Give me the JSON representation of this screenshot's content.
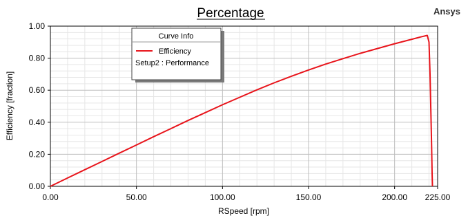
{
  "brand": "Ansys",
  "chart_data": {
    "type": "line",
    "title": "Percentage",
    "xlabel": "RSpeed [rpm]",
    "ylabel": "Efficiency [fraction]",
    "xlim": [
      0,
      225
    ],
    "ylim": [
      0,
      1
    ],
    "x_ticks": [
      "0.00",
      "50.00",
      "100.00",
      "150.00",
      "200.00",
      "225.00"
    ],
    "x_tick_values": [
      0,
      50,
      100,
      150,
      200,
      225
    ],
    "y_ticks": [
      "0.00",
      "0.20",
      "0.40",
      "0.60",
      "0.80",
      "1.00"
    ],
    "y_tick_values": [
      0,
      0.2,
      0.4,
      0.6,
      0.8,
      1.0
    ],
    "grid": true,
    "legend": {
      "title": "Curve Info",
      "placement": "top-left",
      "entries": [
        {
          "name": "Efficiency",
          "source": "Setup2 : Performance",
          "color": "#e8141b"
        }
      ]
    },
    "series": [
      {
        "name": "Efficiency",
        "color": "#e8141b",
        "x": [
          0,
          10,
          20,
          30,
          40,
          50,
          60,
          70,
          80,
          90,
          100,
          110,
          120,
          130,
          140,
          150,
          160,
          170,
          180,
          190,
          200,
          210,
          215,
          219,
          220,
          220.6,
          221.1,
          221.5,
          221.8,
          222.0
        ],
        "y": [
          0,
          0.052,
          0.104,
          0.155,
          0.207,
          0.258,
          0.31,
          0.36,
          0.411,
          0.46,
          0.509,
          0.556,
          0.602,
          0.646,
          0.687,
          0.726,
          0.763,
          0.797,
          0.83,
          0.86,
          0.89,
          0.918,
          0.932,
          0.942,
          0.9,
          0.7,
          0.45,
          0.25,
          0.08,
          0.0
        ]
      }
    ]
  }
}
